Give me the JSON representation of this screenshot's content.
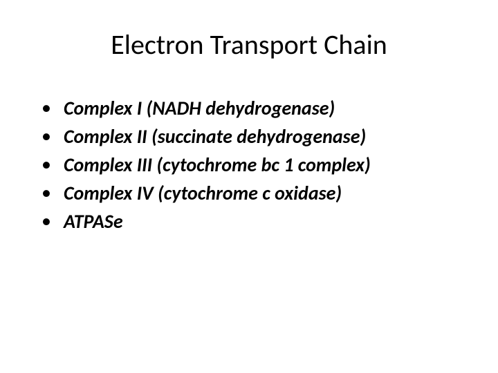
{
  "slide": {
    "title": "Electron Transport Chain",
    "title_fontsize": 40,
    "title_weight": 400,
    "bullets": [
      {
        "text": "Complex I (NADH dehydrogenase)"
      },
      {
        "text": "Complex II (succinate dehydrogenase)"
      },
      {
        "text": "Complex III (cytochrome bc 1 complex)"
      },
      {
        "text": "Complex IV (cytochrome c oxidase)"
      },
      {
        "text": "ATPASe"
      }
    ],
    "bullet_fontsize": 28,
    "bullet_weight": 700,
    "bullet_style": "italic",
    "bullet_marker": "•",
    "background_color": "#ffffff",
    "text_color": "#000000"
  }
}
